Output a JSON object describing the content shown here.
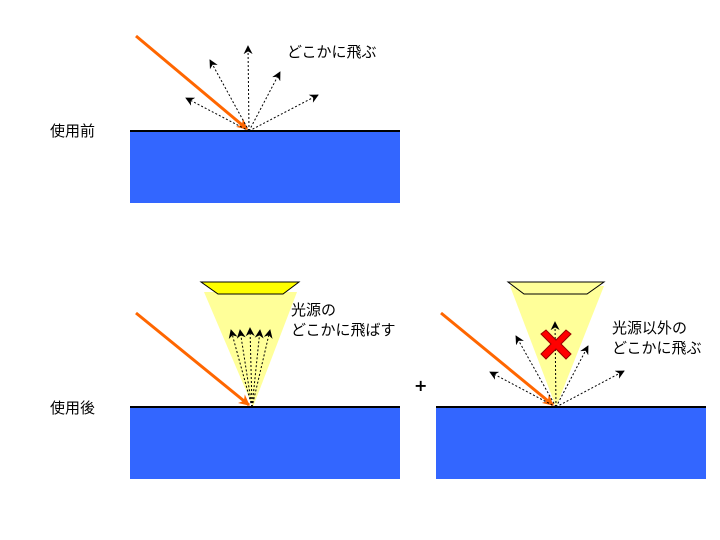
{
  "labels": {
    "before": "使用前",
    "after": "使用後",
    "scatter_top": "どこかに飛ぶ",
    "to_light_1": "光源の",
    "to_light_2": "どこかに飛ばす",
    "outside_1": "光源以外の",
    "outside_2": "どこかに飛ぶ",
    "plus": "+"
  },
  "colors": {
    "surface": "#3366ff",
    "incident_ray": "#ff6600",
    "light_cone": "#ffff99",
    "light_source": "#ffff00",
    "cross": "#ff0000",
    "arrows": "#000000"
  }
}
